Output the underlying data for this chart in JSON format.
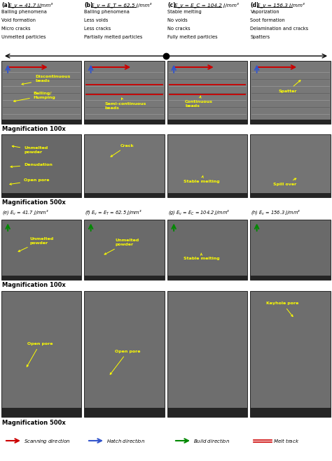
{
  "figsize": [
    4.74,
    6.59
  ],
  "dpi": 100,
  "bg_color": "#ffffff",
  "header_cols": [
    {
      "label": "(a)",
      "ev_text": "E_v = 41.7 J/mm³",
      "lines": [
        "Balling phenomena",
        "Void formation",
        "Micro cracks",
        "Unmelted particles"
      ]
    },
    {
      "label": "(b)",
      "ev_text": "E_v = E_T = 62.5 J/mm³",
      "lines": [
        "Balling phenomena",
        "Less voids",
        "Less cracks",
        "Partially melted particles"
      ]
    },
    {
      "label": "(c)",
      "ev_text": "E_v = E_C = 104.2 J/mm³",
      "lines": [
        "Stable melting",
        "No voids",
        "No cracks",
        "Fully melted particles"
      ]
    },
    {
      "label": "(d)",
      "ev_text": "E_v = 156.3 J/mm³",
      "lines": [
        "Vaporization",
        "Soot formation",
        "Delamination and cracks",
        "Spatters"
      ]
    }
  ],
  "eh_labels": [
    "(e) $E_v$ = 41.7 J/mm³",
    "(f) $E_v$ = $E_T$ = 62.5 J/mm³",
    "(g) $E_v$ = $E_C$ = 104.2 J/mm³",
    "(h) $E_v$ = 156.3 J/mm³"
  ],
  "arrow_scan_color": "#cc0000",
  "arrow_hatch_color": "#3355cc",
  "arrow_build_color": "#008800",
  "melt_track_color": "#cc0000",
  "panel_gray": "#7a7a7a",
  "panel_dark": "#3a3a3a",
  "panel_strip": "#252525"
}
